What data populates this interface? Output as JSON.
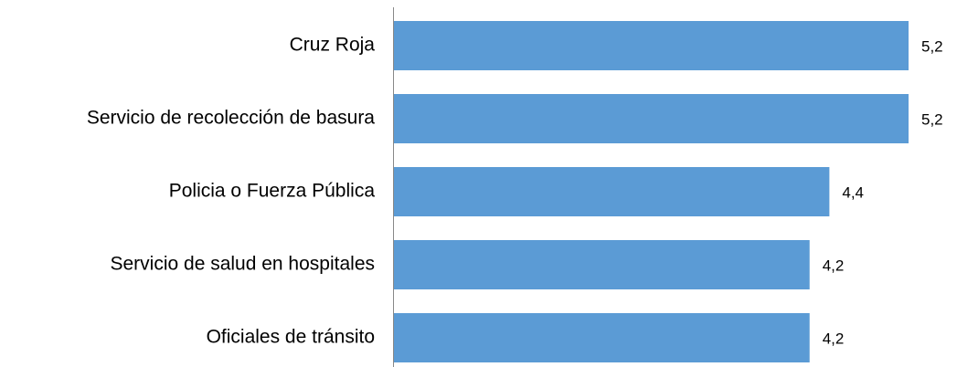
{
  "chart_data": {
    "type": "bar",
    "orientation": "horizontal",
    "categories": [
      "Cruz Roja",
      "Servicio de recolección de basura",
      "Policia o Fuerza Pública",
      "Servicio de salud en hospitales",
      "Oficiales de tránsito"
    ],
    "values": [
      5.2,
      5.2,
      4.4,
      4.2,
      4.2
    ],
    "value_labels": [
      "5,2",
      "5,2",
      "4,4",
      "4,2",
      "4,2"
    ],
    "color": "#5b9bd5"
  }
}
